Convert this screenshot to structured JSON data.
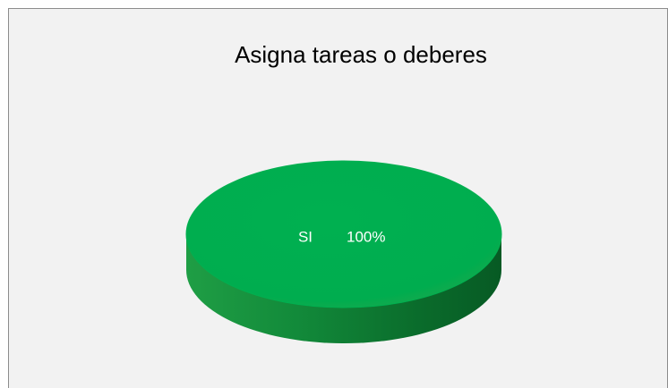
{
  "chart_data": {
    "type": "pie",
    "title": "Asigna tareas o deberes",
    "categories": [
      "SI"
    ],
    "values": [
      100
    ],
    "value_labels": [
      "100%"
    ],
    "colors": [
      "#00b050"
    ]
  }
}
